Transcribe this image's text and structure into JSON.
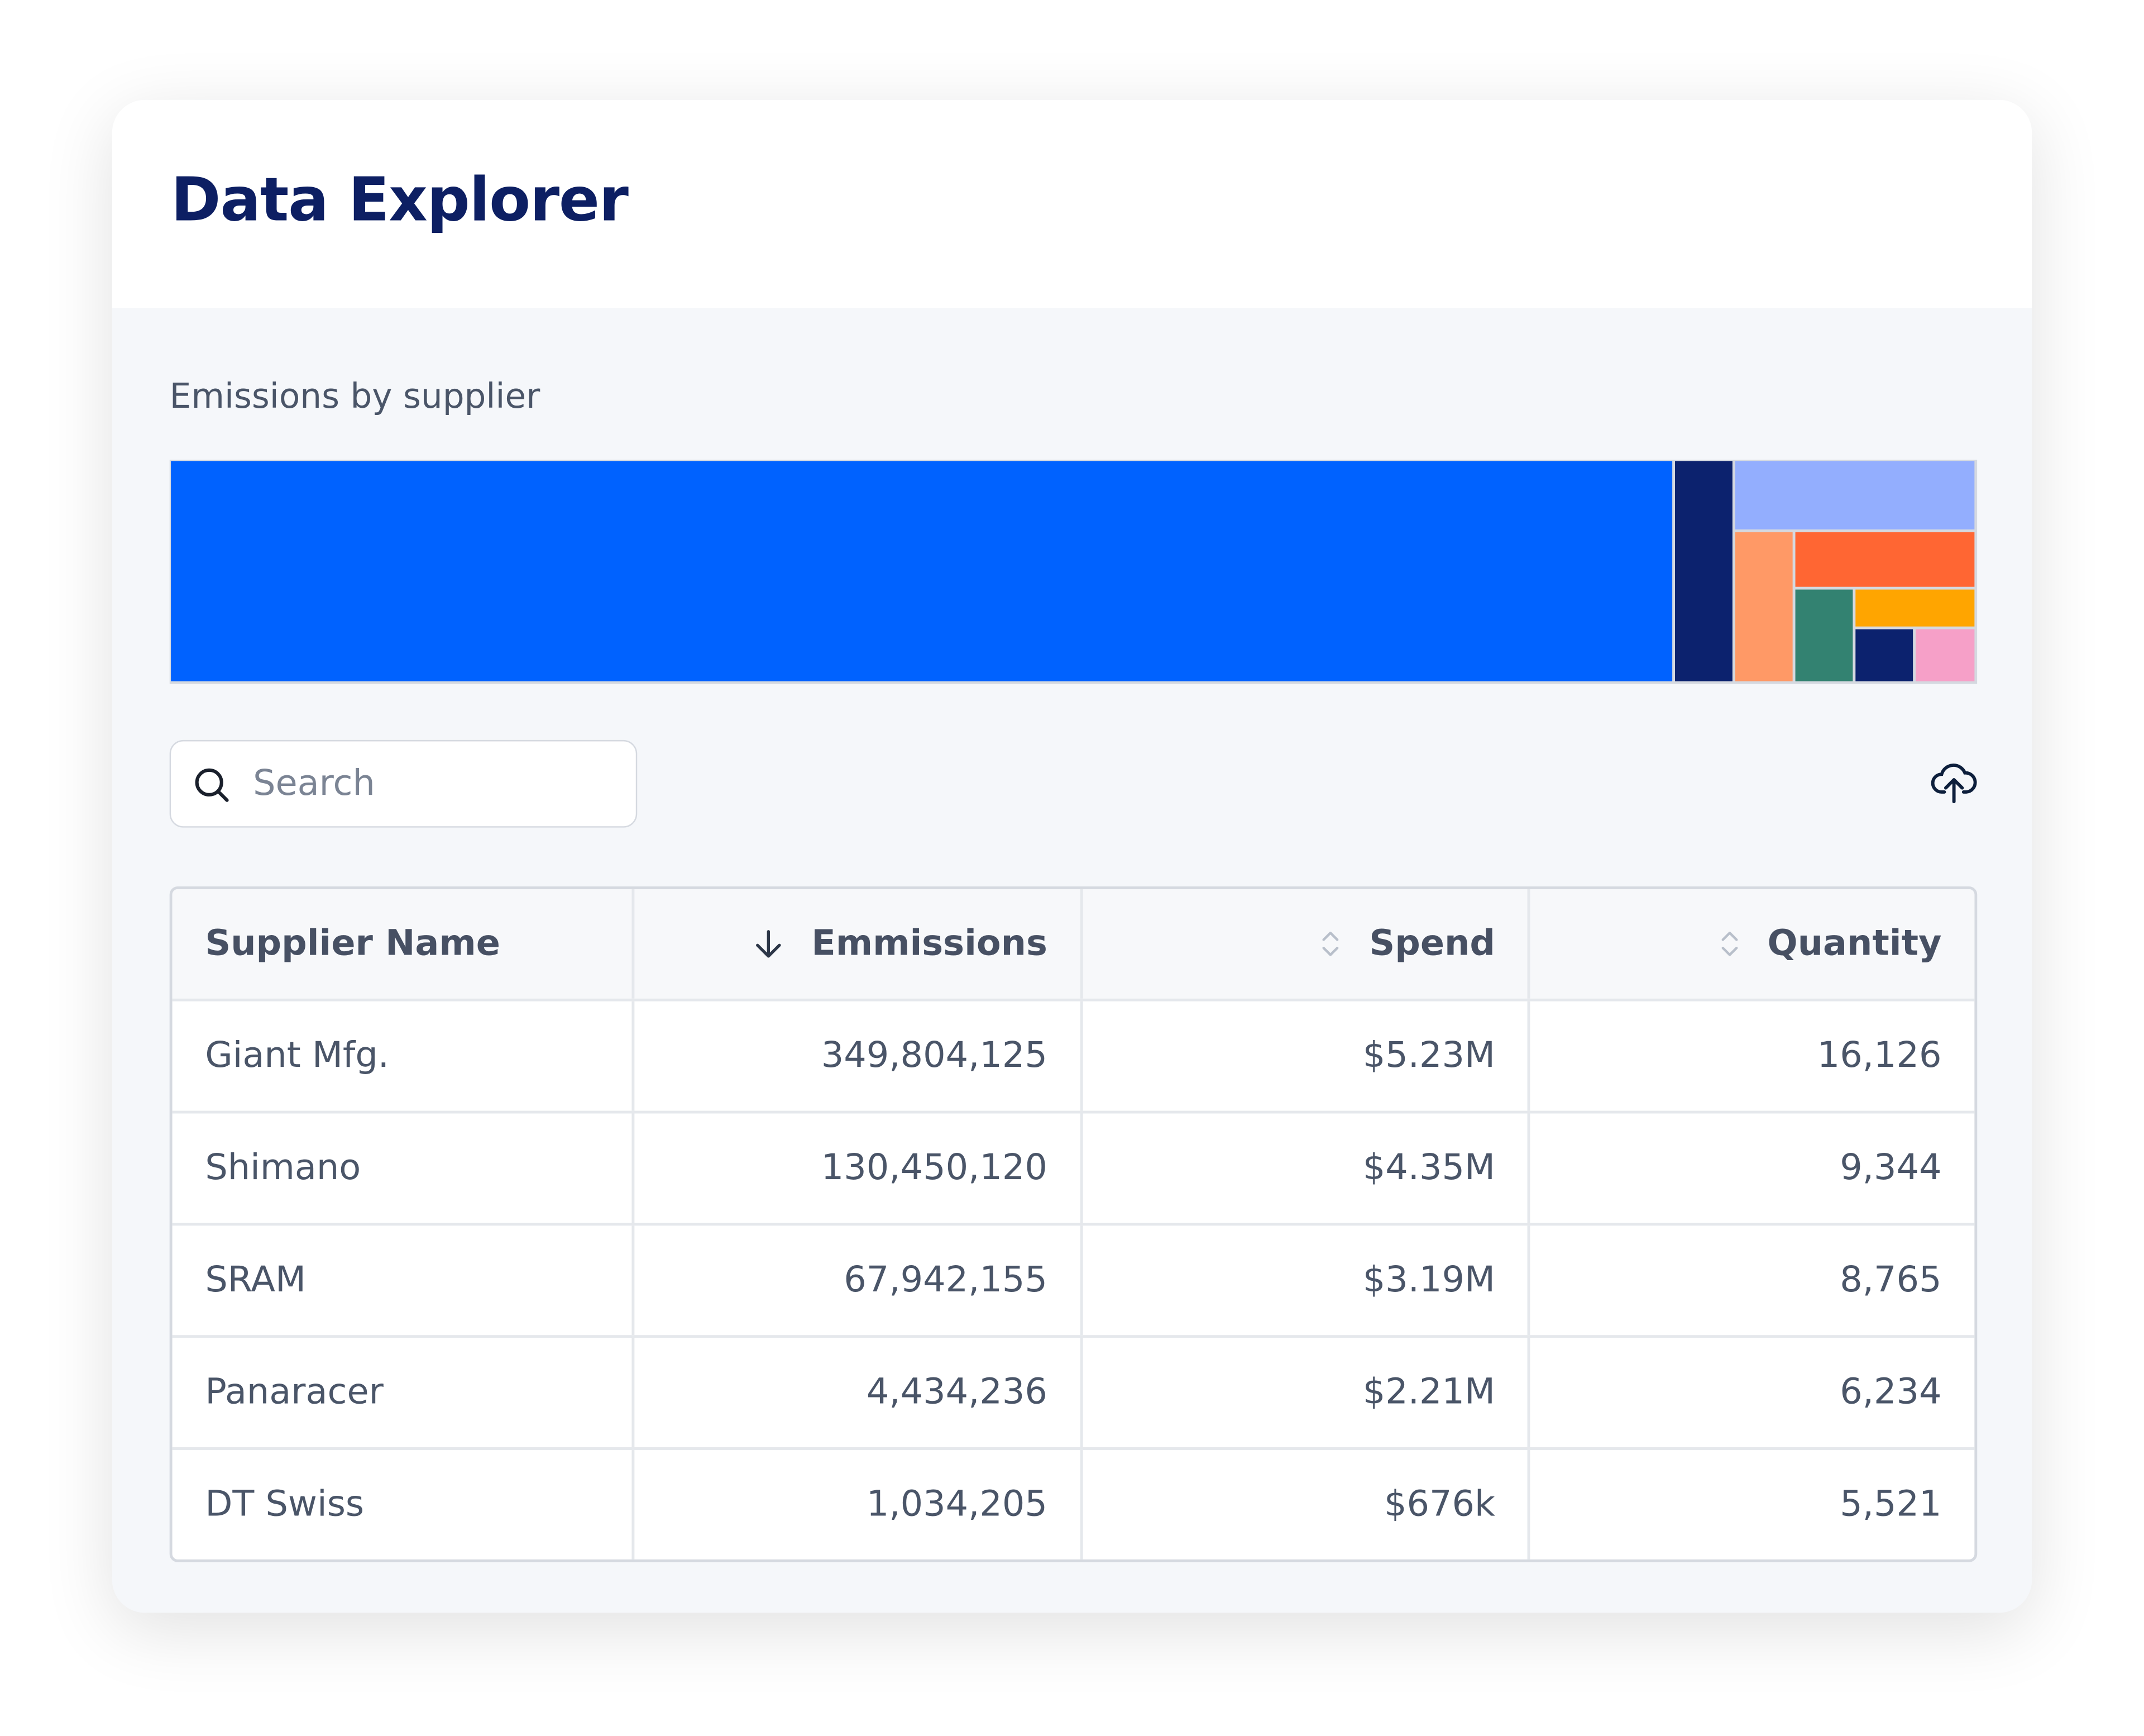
{
  "header": {
    "title": "Data Explorer"
  },
  "treemap": {
    "title": "Emissions by supplier"
  },
  "search": {
    "placeholder": "Search"
  },
  "table": {
    "columns": [
      "Supplier Name",
      "Emmissions",
      "Spend",
      "Quantity"
    ],
    "rows": [
      [
        "Giant Mfg.",
        "349,804,125",
        "$5.23M",
        "16,126"
      ],
      [
        "Shimano",
        "130,450,120",
        "$4.35M",
        "9,344"
      ],
      [
        "SRAM",
        "67,942,155",
        "$3.19M",
        "8,765"
      ],
      [
        "Panaracer",
        "4,434,236",
        "$2.21M",
        "6,234"
      ],
      [
        "DT Swiss",
        "1,034,205",
        "$676k",
        "5,521"
      ]
    ]
  }
}
